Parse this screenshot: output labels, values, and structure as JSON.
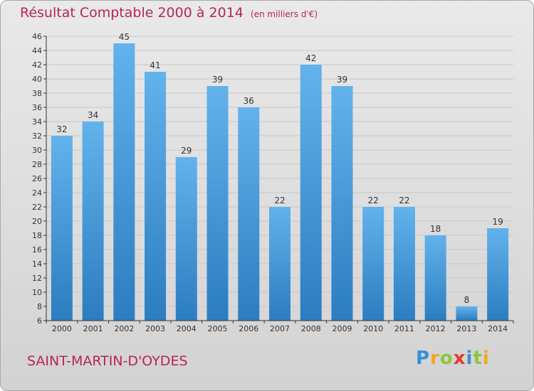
{
  "title": "Résultat Comptable 2000 à 2014",
  "subtitle": "(en milliers d'€)",
  "town": "SAINT-MARTIN-D'OYDES",
  "logo": {
    "letters": [
      "P",
      "r",
      "o",
      "x",
      "i",
      "t",
      "i"
    ],
    "colors": [
      "#3a8fd6",
      "#f0a81e",
      "#8cc63e",
      "#e23b2a",
      "#3a8fd6",
      "#8cc63e",
      "#f0a81e"
    ]
  },
  "colors": {
    "title": "#b7245c",
    "bar_light": "#62b2ec",
    "bar_dark": "#2c7dc0",
    "grid": "#c8c8c8"
  },
  "chart_data": {
    "type": "bar",
    "title": "Résultat Comptable 2000 à 2014",
    "ylabel": "(en milliers d'€)",
    "categories": [
      "2000",
      "2001",
      "2002",
      "2003",
      "2004",
      "2005",
      "2006",
      "2007",
      "2008",
      "2009",
      "2010",
      "2011",
      "2012",
      "2013",
      "2014"
    ],
    "values": [
      32,
      34,
      45,
      41,
      29,
      39,
      36,
      22,
      42,
      39,
      22,
      22,
      18,
      8,
      19
    ],
    "ylim": [
      6,
      46
    ],
    "yticks": [
      6,
      8,
      10,
      12,
      14,
      16,
      18,
      20,
      22,
      24,
      26,
      28,
      30,
      32,
      34,
      36,
      38,
      40,
      42,
      44,
      46
    ],
    "grid": true
  }
}
